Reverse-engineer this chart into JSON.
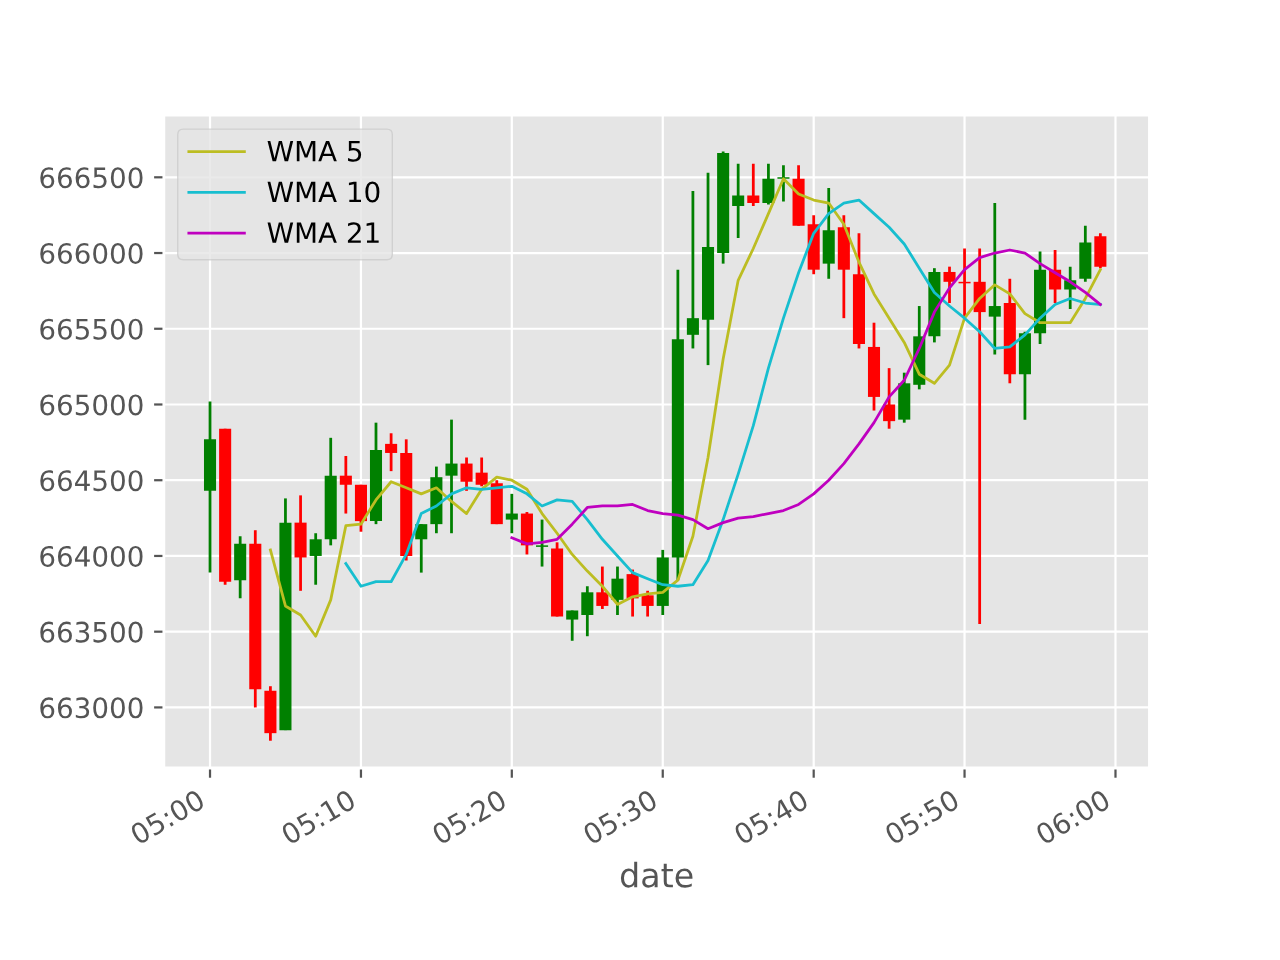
{
  "chart_data": {
    "type": "candlestick",
    "xlabel": "date",
    "x": [
      5.0,
      5.0167,
      5.0333,
      5.05,
      5.0667,
      5.0833,
      5.1,
      5.1167,
      5.1333,
      5.15,
      5.1667,
      5.1833,
      5.2,
      5.2167,
      5.2333,
      5.25,
      5.2667,
      5.2833,
      5.3,
      5.3167,
      5.3333,
      5.35,
      5.3667,
      5.3833,
      5.4,
      5.4167,
      5.4333,
      5.45,
      5.4667,
      5.4833,
      5.5,
      5.5167,
      5.5333,
      5.55,
      5.5667,
      5.5833,
      5.6,
      5.6167,
      5.6333,
      5.65,
      5.6667,
      5.6833,
      5.7,
      5.7167,
      5.7333,
      5.75,
      5.7667,
      5.7833,
      5.8,
      5.8167,
      5.8333,
      5.85,
      5.8667,
      5.8833,
      5.9,
      5.9167,
      5.9333,
      5.95,
      5.9667,
      5.9833
    ],
    "ohlc": [
      [
        664430,
        665020,
        663890,
        664770
      ],
      [
        664840,
        664840,
        663810,
        663830
      ],
      [
        663840,
        664130,
        663720,
        664080
      ],
      [
        664080,
        664170,
        663000,
        663120
      ],
      [
        663110,
        663140,
        662780,
        662830
      ],
      [
        662850,
        664380,
        662850,
        664220
      ],
      [
        664220,
        664400,
        663770,
        663990
      ],
      [
        664000,
        664150,
        663810,
        664110
      ],
      [
        664110,
        664780,
        664070,
        664530
      ],
      [
        664530,
        664660,
        664280,
        664470
      ],
      [
        664470,
        664470,
        664160,
        664230
      ],
      [
        664230,
        664880,
        664210,
        664700
      ],
      [
        664740,
        664810,
        664560,
        664680
      ],
      [
        664680,
        664770,
        663970,
        664000
      ],
      [
        664110,
        664210,
        663890,
        664210
      ],
      [
        664210,
        664590,
        664150,
        664520
      ],
      [
        664530,
        664900,
        664150,
        664610
      ],
      [
        664610,
        664650,
        664430,
        664490
      ],
      [
        664550,
        664650,
        664460,
        664470
      ],
      [
        664480,
        664500,
        664210,
        664210
      ],
      [
        664240,
        664410,
        664150,
        664280
      ],
      [
        664280,
        664290,
        664010,
        664070
      ],
      [
        664060,
        664240,
        663930,
        664070
      ],
      [
        664050,
        664090,
        663600,
        663600
      ],
      [
        663580,
        663640,
        663440,
        663640
      ],
      [
        663610,
        663800,
        663470,
        663760
      ],
      [
        663760,
        663930,
        663650,
        663670
      ],
      [
        663710,
        663930,
        663610,
        663850
      ],
      [
        663880,
        663910,
        663600,
        663720
      ],
      [
        663740,
        663770,
        663600,
        663670
      ],
      [
        663670,
        664040,
        663610,
        663990
      ],
      [
        663990,
        665890,
        663840,
        665430
      ],
      [
        665460,
        666410,
        665370,
        665570
      ],
      [
        665560,
        666530,
        665260,
        666040
      ],
      [
        666000,
        666670,
        665930,
        666660
      ],
      [
        666310,
        666590,
        666100,
        666380
      ],
      [
        666380,
        666590,
        666310,
        666330
      ],
      [
        666330,
        666590,
        666320,
        666490
      ],
      [
        666490,
        666580,
        666340,
        666500
      ],
      [
        666490,
        666580,
        666180,
        666180
      ],
      [
        666190,
        666250,
        665860,
        665890
      ],
      [
        665930,
        666430,
        665830,
        666150
      ],
      [
        666170,
        666250,
        665570,
        665890
      ],
      [
        665860,
        666130,
        665370,
        665400
      ],
      [
        665380,
        665540,
        664960,
        665050
      ],
      [
        665000,
        665240,
        664840,
        664890
      ],
      [
        664900,
        665210,
        664880,
        665140
      ],
      [
        665130,
        665650,
        665100,
        665450
      ],
      [
        665450,
        665900,
        665410,
        665875
      ],
      [
        665875,
        665910,
        665670,
        665810
      ],
      [
        665810,
        666030,
        665570,
        665800
      ],
      [
        665810,
        666030,
        663550,
        665610
      ],
      [
        665580,
        666330,
        665330,
        665650
      ],
      [
        665670,
        665830,
        665140,
        665200
      ],
      [
        665200,
        665480,
        664900,
        665470
      ],
      [
        665470,
        666010,
        665400,
        665890
      ],
      [
        665890,
        666020,
        665670,
        665760
      ],
      [
        665760,
        665910,
        665630,
        665820
      ],
      [
        665830,
        666180,
        665810,
        666070
      ],
      [
        666110,
        666130,
        665900,
        665910
      ]
    ],
    "colors": [
      "#008000",
      "#ff0000",
      "#008000",
      "#ff0000",
      "#ff0000",
      "#008000",
      "#ff0000",
      "#008000",
      "#008000",
      "#ff0000",
      "#ff0000",
      "#008000",
      "#ff0000",
      "#ff0000",
      "#008000",
      "#008000",
      "#008000",
      "#ff0000",
      "#ff0000",
      "#ff0000",
      "#008000",
      "#ff0000",
      "#008000",
      "#ff0000",
      "#008000",
      "#008000",
      "#ff0000",
      "#008000",
      "#ff0000",
      "#ff0000",
      "#008000",
      "#008000",
      "#008000",
      "#008000",
      "#008000",
      "#008000",
      "#ff0000",
      "#008000",
      "#008000",
      "#ff0000",
      "#ff0000",
      "#008000",
      "#ff0000",
      "#ff0000",
      "#ff0000",
      "#ff0000",
      "#008000",
      "#008000",
      "#008000",
      "#ff0000",
      "#ff0000",
      "#ff0000",
      "#008000",
      "#ff0000",
      "#008000",
      "#008000",
      "#ff0000",
      "#008000",
      "#008000",
      "#ff0000"
    ],
    "series": [
      {
        "name": "WMA 5",
        "type": "line",
        "color": "#bcbd22",
        "values": [
          null,
          null,
          null,
          null,
          664040,
          663670,
          663610,
          663470,
          663710,
          664200,
          664210,
          664370,
          664490,
          664450,
          664410,
          664450,
          664360,
          664280,
          664440,
          664520,
          664500,
          664440,
          664280,
          664150,
          664010,
          663900,
          663800,
          663680,
          663730,
          663750,
          663760,
          663840,
          664130,
          664650,
          665300,
          665820,
          666030,
          666260,
          666490,
          666390,
          666350,
          666330,
          666190,
          665940,
          665730,
          665570,
          665410,
          665200,
          665140,
          665260,
          665570,
          665700,
          665790,
          665730,
          665600,
          665540,
          665540,
          665540,
          665700,
          665890
        ]
      },
      {
        "name": "WMA 10",
        "type": "line",
        "color": "#17becf",
        "values": [
          null,
          null,
          null,
          null,
          null,
          null,
          null,
          null,
          null,
          663950,
          663800,
          663830,
          663830,
          664010,
          664280,
          664330,
          664410,
          664450,
          664440,
          664450,
          664460,
          664410,
          664330,
          664370,
          664360,
          664240,
          664110,
          664000,
          663890,
          663850,
          663810,
          663800,
          663810,
          663970,
          664240,
          664540,
          664860,
          665240,
          665570,
          665870,
          666130,
          666260,
          666330,
          666350,
          666260,
          666170,
          666060,
          665900,
          665740,
          665650,
          665570,
          665480,
          665370,
          665380,
          665460,
          665570,
          665660,
          665700,
          665670,
          665660
        ]
      },
      {
        "name": "WMA 21",
        "type": "line",
        "color": "#bf00bf",
        "values": [
          null,
          null,
          null,
          null,
          null,
          null,
          null,
          null,
          null,
          null,
          null,
          null,
          null,
          null,
          null,
          null,
          null,
          null,
          null,
          null,
          664120,
          664080,
          664090,
          664110,
          664210,
          664320,
          664330,
          664330,
          664340,
          664300,
          664280,
          664270,
          664240,
          664180,
          664220,
          664250,
          664260,
          664280,
          664300,
          664340,
          664410,
          664500,
          664610,
          664740,
          664880,
          665050,
          665160,
          665370,
          665610,
          665770,
          665890,
          665970,
          666000,
          666020,
          666000,
          665930,
          665870,
          665810,
          665740,
          665660
        ]
      }
    ],
    "xlim": [
      4.949,
      6.0375
    ],
    "xticks": [
      {
        "value": 5.0,
        "label": "05:00"
      },
      {
        "value": 5.1667,
        "label": "05:10"
      },
      {
        "value": 5.3333,
        "label": "05:20"
      },
      {
        "value": 5.5,
        "label": "05:30"
      },
      {
        "value": 5.6667,
        "label": "05:40"
      },
      {
        "value": 5.8333,
        "label": "05:50"
      },
      {
        "value": 6.0,
        "label": "06:00"
      }
    ],
    "ylim": [
      662600,
      666910
    ],
    "yticks": [
      663000,
      663500,
      664000,
      664500,
      665000,
      665500,
      666000,
      666500
    ],
    "grid": true,
    "legend": "top left"
  }
}
